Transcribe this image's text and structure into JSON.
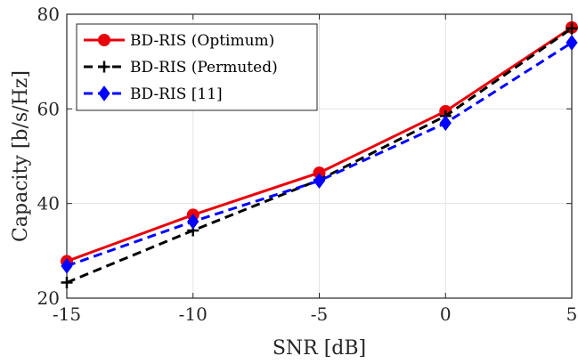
{
  "chart_data": {
    "type": "line",
    "x": [
      -15,
      -10,
      -5,
      0,
      5
    ],
    "xticks": [
      "-15",
      "-10",
      "-5",
      "0",
      "5"
    ],
    "yticks": [
      "20",
      "40",
      "60",
      "80"
    ],
    "xlim": [
      -15,
      5
    ],
    "ylim": [
      20,
      80
    ],
    "xlabel": "SNR [dB]",
    "ylabel": "Capacity [b/s/Hz]",
    "grid": true,
    "legend_position": "top-left",
    "series": [
      {
        "name": "BD-RIS (Optimum)",
        "values": [
          27.8,
          37.6,
          46.5,
          59.5,
          77.2
        ],
        "color": "#e8000b",
        "dash": "solid",
        "marker": "circle"
      },
      {
        "name": "BD-RIS (Permuted)",
        "values": [
          23.3,
          34.3,
          45.0,
          58.5,
          77.0
        ],
        "color": "#000000",
        "dash": "dashed",
        "marker": "plus"
      },
      {
        "name": "BD-RIS [11]",
        "values": [
          26.8,
          36.2,
          44.8,
          57.0,
          74.0
        ],
        "color": "#0000ff",
        "dash": "dashed",
        "marker": "diamond"
      }
    ]
  }
}
